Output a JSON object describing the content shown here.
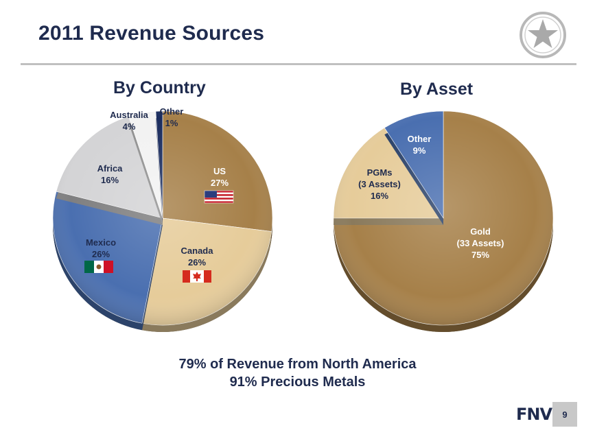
{
  "slide": {
    "title": "2011 Revenue Sources",
    "footer_line1": "79% of Revenue from North America",
    "footer_line2": "91% Precious Metals",
    "logo_text": "FNV",
    "page_number": "9",
    "seal_icon": "star-icon"
  },
  "colors": {
    "gold": "#a68049",
    "tan": "#e6cc9a",
    "blue": "#4a6fb0",
    "light_gray": "#d4d4d6",
    "white_slice": "#f2f2f2",
    "navy": "#1a2c5e",
    "title_navy": "#1f2b4e"
  },
  "chart_data": [
    {
      "type": "pie",
      "title": "By Country",
      "slices": [
        {
          "name": "US",
          "line1": "US",
          "line2": "",
          "pct_label": "27%",
          "value": 27,
          "color": "#a68049",
          "label_color": "#ffffff",
          "flag": "us"
        },
        {
          "name": "Canada",
          "line1": "Canada",
          "line2": "",
          "pct_label": "26%",
          "value": 26,
          "color": "#e6cc9a",
          "label_color": "#1f2b4e",
          "flag": "ca"
        },
        {
          "name": "Mexico",
          "line1": "Mexico",
          "line2": "",
          "pct_label": "26%",
          "value": 26,
          "color": "#4a6fb0",
          "label_color": "#1f2b4e",
          "flag": "mx"
        },
        {
          "name": "Africa",
          "line1": "Africa",
          "line2": "",
          "pct_label": "16%",
          "value": 16,
          "color": "#d4d4d6",
          "label_color": "#1f2b4e",
          "flag": ""
        },
        {
          "name": "Australia",
          "line1": "Australia",
          "line2": "",
          "pct_label": "4%",
          "value": 4,
          "color": "#f2f2f2",
          "label_color": "#1f2b4e",
          "flag": ""
        },
        {
          "name": "Other",
          "line1": "Other",
          "line2": "",
          "pct_label": "1%",
          "value": 1,
          "color": "#1a2c5e",
          "label_color": "#1f2b4e",
          "flag": ""
        }
      ]
    },
    {
      "type": "pie",
      "title": "By Asset",
      "slices": [
        {
          "name": "Gold",
          "line1": "Gold",
          "line2": "(33 Assets)",
          "pct_label": "75%",
          "value": 75,
          "color": "#a68049",
          "label_color": "#ffffff",
          "flag": ""
        },
        {
          "name": "PGMs",
          "line1": "PGMs",
          "line2": "(3 Assets)",
          "pct_label": "16%",
          "value": 16,
          "color": "#e6cc9a",
          "label_color": "#1f2b4e",
          "flag": ""
        },
        {
          "name": "Other",
          "line1": "Other",
          "line2": "",
          "pct_label": "9%",
          "value": 9,
          "color": "#4a6fb0",
          "label_color": "#ffffff",
          "flag": ""
        }
      ]
    }
  ]
}
